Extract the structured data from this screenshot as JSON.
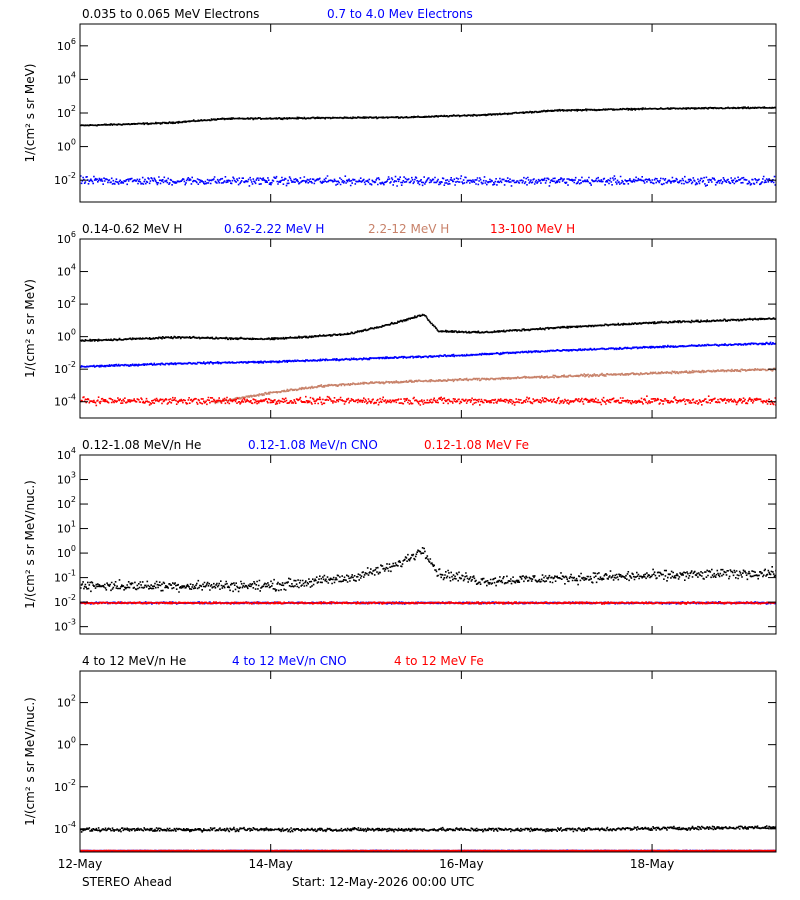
{
  "chart_data": [
    {
      "type": "scatter",
      "panel": 1,
      "ylabel": "1/(cm² s sr MeV)",
      "y_scale": "log",
      "ylim_exp": [
        -3.3,
        7.3
      ],
      "y_ticks": [
        "10^6",
        "10^4",
        "10^2",
        "10^0",
        "10^-2"
      ],
      "series": [
        {
          "name": "0.035 to 0.065 MeV Electrons",
          "color": "#000000",
          "x_days": [
            0,
            0.9,
            1.5,
            2.5,
            3.5,
            4.3,
            5,
            6,
            7,
            8,
            9.2,
            10
          ],
          "log_values": [
            1.3,
            1.45,
            1.7,
            1.75,
            1.8,
            1.95,
            2.2,
            2.3,
            2.35,
            2.4,
            2.3,
            2.2
          ],
          "scatter": 0.06
        },
        {
          "name": "0.7 to 4.0 Mev Electrons",
          "color": "#0000ff",
          "x_days": [
            0,
            10
          ],
          "log_values": [
            -2.0,
            -2.0
          ],
          "scatter": 0.35
        }
      ]
    },
    {
      "type": "scatter",
      "panel": 2,
      "ylabel": "1/(cm² s sr MeV)",
      "y_scale": "log",
      "ylim_exp": [
        -5.0,
        6.0
      ],
      "y_ticks": [
        "10^6",
        "10^4",
        "10^2",
        "10^0",
        "10^-2",
        "10^-4"
      ],
      "series": [
        {
          "name": "0.14-0.62 MeV H",
          "color": "#000000",
          "x_days": [
            0,
            1,
            2,
            2.8,
            3.3,
            3.6,
            3.75,
            4.2,
            5,
            6,
            7,
            8,
            8.3,
            8.5,
            8.8,
            10
          ],
          "log_values": [
            -0.2,
            0.0,
            -0.1,
            0.2,
            0.9,
            1.4,
            0.4,
            0.3,
            0.6,
            0.9,
            1.1,
            1.3,
            1.5,
            2.0,
            1.2,
            1.4
          ],
          "scatter": 0.08
        },
        {
          "name": "0.62-2.22 MeV H",
          "color": "#0000ff",
          "x_days": [
            0,
            1,
            2,
            3,
            4,
            5,
            6,
            7,
            8,
            8.3,
            8.5,
            8.8,
            10
          ],
          "log_values": [
            -1.8,
            -1.6,
            -1.5,
            -1.3,
            -1.1,
            -0.8,
            -0.6,
            -0.4,
            -0.3,
            -0.3,
            0.2,
            -0.3,
            -0.2
          ],
          "scatter": 0.08
        },
        {
          "name": "2.2-12 MeV H",
          "color": "#c8826a",
          "x_days": [
            1.4,
            2,
            2.5,
            3,
            4,
            5,
            6,
            7,
            8,
            8.3,
            8.5,
            8.8,
            10
          ],
          "log_values": [
            -4.0,
            -3.4,
            -3.0,
            -2.8,
            -2.6,
            -2.4,
            -2.2,
            -2.0,
            -1.9,
            -1.9,
            -1.5,
            -1.9,
            -1.8
          ],
          "scatter": 0.1
        },
        {
          "name": "13-100 MeV H",
          "color": "#ff0000",
          "x_days": [
            0,
            10
          ],
          "log_values": [
            -3.9,
            -3.9
          ],
          "scatter": 0.3
        }
      ]
    },
    {
      "type": "scatter",
      "panel": 3,
      "ylabel": "1/(cm² s sr MeV/nuc.)",
      "y_scale": "log",
      "ylim_exp": [
        -3.3,
        4.0
      ],
      "y_ticks": [
        "10^4",
        "10^3",
        "10^2",
        "10^1",
        "10^0",
        "10^-1",
        "10^-2",
        "10^-3"
      ],
      "series": [
        {
          "name": "0.12-1.08 MeV/n He",
          "color": "#000000",
          "x_days": [
            0,
            1,
            2,
            2.8,
            3.3,
            3.6,
            3.75,
            4.2,
            5,
            6,
            7,
            8,
            8.3,
            8.5,
            8.8,
            10
          ],
          "log_values": [
            -1.3,
            -1.3,
            -1.3,
            -1.0,
            -0.5,
            0.2,
            -0.8,
            -1.1,
            -1.0,
            -0.9,
            -0.8,
            -0.7,
            -0.7,
            0.1,
            -0.5,
            -0.6
          ],
          "scatter": 0.3
        },
        {
          "name": "0.12-1.08 MeV/n CNO",
          "color": "#0000ff",
          "x_days": [
            0,
            10
          ],
          "log_values": [
            -2.0,
            -2.0
          ],
          "scatter": 0.05
        },
        {
          "name": "0.12-1.08 MeV Fe",
          "color": "#ff0000",
          "x_days": [
            0,
            10
          ],
          "log_values": [
            -2.0,
            -2.0
          ],
          "scatter": 0.05
        }
      ]
    },
    {
      "type": "scatter",
      "panel": 4,
      "ylabel": "1/(cm² s sr MeV/nuc.)",
      "y_scale": "log",
      "ylim_exp": [
        -5.1,
        3.5
      ],
      "y_ticks": [
        "10^2",
        "10^0",
        "10^-2",
        "10^-4"
      ],
      "series": [
        {
          "name": "4 to 12 MeV/n He",
          "color": "#000000",
          "x_days": [
            0,
            5,
            7,
            10
          ],
          "log_values": [
            -4.0,
            -4.0,
            -3.9,
            -3.9
          ],
          "scatter": 0.12
        },
        {
          "name": "4 to 12 MeV/n CNO",
          "color": "#0000ff",
          "x_days": [
            0,
            10
          ],
          "log_values": [
            -5.0,
            -5.0
          ],
          "scatter": 0.02
        },
        {
          "name": "4 to 12 MeV Fe",
          "color": "#ff0000",
          "x_days": [
            0,
            10
          ],
          "log_values": [
            -5.0,
            -5.0
          ],
          "scatter": 0.02
        }
      ]
    }
  ],
  "x_axis": {
    "range_days": [
      0,
      7.3
    ],
    "ticks": [
      {
        "day": 0,
        "label": "12-May"
      },
      {
        "day": 2,
        "label": "14-May"
      },
      {
        "day": 4,
        "label": "16-May"
      },
      {
        "day": 6,
        "label": "18-May"
      }
    ]
  },
  "footer": {
    "left": "STEREO Ahead",
    "center": "Start: 12-May-2026 00:00 UTC"
  }
}
